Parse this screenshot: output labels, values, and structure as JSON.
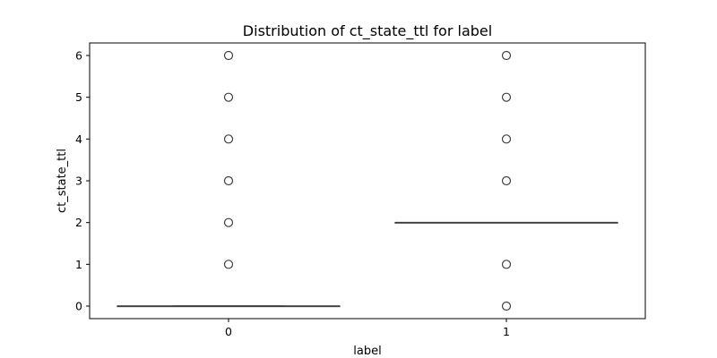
{
  "chart_data": {
    "type": "box",
    "title": "Distribution of ct_state_ttl for label",
    "xlabel": "label",
    "ylabel": "ct_state_ttl",
    "categories": [
      "0",
      "1"
    ],
    "ylim": [
      -0.3,
      6.3
    ],
    "yticks": [
      0,
      1,
      2,
      3,
      4,
      5,
      6
    ],
    "grid": false,
    "boxes": [
      {
        "category": "0",
        "whisker_low": 0,
        "q1": 0,
        "median": 0,
        "q3": 0,
        "whisker_high": 0,
        "outliers": [
          1,
          2,
          3,
          4,
          5,
          6
        ]
      },
      {
        "category": "1",
        "whisker_low": 2,
        "q1": 2,
        "median": 2,
        "q3": 2,
        "whisker_high": 2,
        "outliers": [
          0,
          1,
          3,
          4,
          5,
          6
        ]
      }
    ],
    "colors": {
      "box_line": "#3f3f3f",
      "outlier": "#3f3f3f",
      "axes": "#000000"
    }
  }
}
